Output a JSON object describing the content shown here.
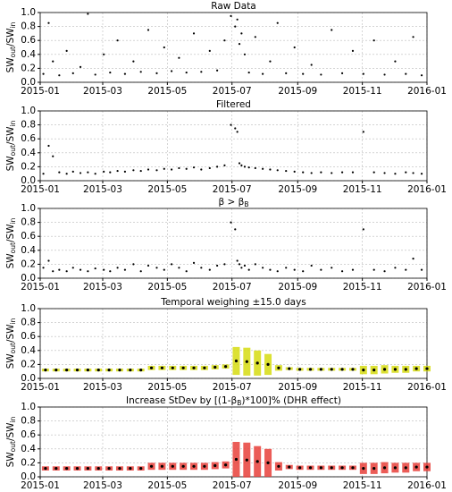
{
  "chart_data": [
    {
      "type": "scatter",
      "title": [
        "Raw Data"
      ],
      "y_label": [
        "SW",
        "out",
        "/SW",
        "in"
      ],
      "color": "#000000",
      "grid": true,
      "xlim": [
        0,
        365
      ],
      "ylim": [
        0,
        1
      ],
      "xticks": [
        {
          "value": 0,
          "label": "2015-01"
        },
        {
          "value": 59,
          "label": "2015-03"
        },
        {
          "value": 120,
          "label": "2015-05"
        },
        {
          "value": 181,
          "label": "2015-07"
        },
        {
          "value": 243,
          "label": "2015-09"
        },
        {
          "value": 304,
          "label": "2015-11"
        },
        {
          "value": 365,
          "label": "2016-01"
        }
      ],
      "yticks": [
        {
          "value": 0,
          "label": "0.0"
        },
        0.2,
        0.4,
        0.6,
        0.8,
        {
          "value": 1,
          "label": "1.0"
        }
      ],
      "x": [
        3,
        8,
        12,
        18,
        25,
        31,
        38,
        45,
        52,
        60,
        66,
        73,
        80,
        88,
        95,
        102,
        110,
        117,
        124,
        131,
        138,
        145,
        152,
        160,
        167,
        174,
        180,
        184,
        186,
        188,
        190,
        193,
        197,
        203,
        210,
        217,
        224,
        232,
        240,
        248,
        256,
        265,
        275,
        285,
        295,
        305,
        315,
        325,
        335,
        345,
        352,
        360
      ],
      "values": [
        0.12,
        0.85,
        0.3,
        0.1,
        0.45,
        0.13,
        0.22,
        0.98,
        0.11,
        0.4,
        0.14,
        0.6,
        0.12,
        0.3,
        0.15,
        0.75,
        0.13,
        0.5,
        0.16,
        0.35,
        0.14,
        0.7,
        0.15,
        0.45,
        0.17,
        0.6,
        0.95,
        0.8,
        0.9,
        0.55,
        0.7,
        0.4,
        0.14,
        0.65,
        0.12,
        0.3,
        0.85,
        0.13,
        0.5,
        0.12,
        0.25,
        0.11,
        0.75,
        0.13,
        0.45,
        0.12,
        0.6,
        0.11,
        0.3,
        0.12,
        0.65,
        0.1
      ]
    },
    {
      "type": "scatter",
      "title": [
        "Filtered"
      ],
      "y_label": [
        "SW",
        "out",
        "/SW",
        "in"
      ],
      "color": "#000000",
      "grid": true,
      "xlim": [
        0,
        365
      ],
      "ylim": [
        0,
        1
      ],
      "xticks": [
        {
          "value": 0,
          "label": "2015-01"
        },
        {
          "value": 59,
          "label": "2015-03"
        },
        {
          "value": 120,
          "label": "2015-05"
        },
        {
          "value": 181,
          "label": "2015-07"
        },
        {
          "value": 243,
          "label": "2015-09"
        },
        {
          "value": 304,
          "label": "2015-11"
        },
        {
          "value": 365,
          "label": "2016-01"
        }
      ],
      "yticks": [
        {
          "value": 0,
          "label": "0.0"
        },
        0.2,
        0.4,
        0.6,
        0.8,
        {
          "value": 1,
          "label": "1.0"
        }
      ],
      "x": [
        3,
        8,
        12,
        18,
        25,
        31,
        38,
        45,
        52,
        60,
        66,
        73,
        80,
        88,
        95,
        102,
        110,
        117,
        124,
        131,
        138,
        145,
        152,
        160,
        167,
        174,
        180,
        184,
        186,
        188,
        190,
        193,
        197,
        203,
        210,
        217,
        224,
        232,
        240,
        248,
        256,
        265,
        275,
        285,
        295,
        305,
        315,
        325,
        335,
        345,
        352,
        360
      ],
      "values": [
        0.1,
        0.5,
        0.35,
        0.12,
        0.1,
        0.13,
        0.11,
        0.12,
        0.1,
        0.13,
        0.12,
        0.14,
        0.13,
        0.15,
        0.14,
        0.16,
        0.15,
        0.17,
        0.16,
        0.18,
        0.17,
        0.19,
        0.16,
        0.18,
        0.2,
        0.22,
        0.8,
        0.75,
        0.7,
        0.25,
        0.22,
        0.2,
        0.19,
        0.18,
        0.17,
        0.16,
        0.15,
        0.14,
        0.13,
        0.12,
        0.11,
        0.12,
        0.11,
        0.12,
        0.12,
        0.7,
        0.12,
        0.11,
        0.1,
        0.12,
        0.11,
        0.1
      ]
    },
    {
      "type": "scatter",
      "title": [
        "β > β",
        "B"
      ],
      "y_label": [
        "SW",
        "out",
        "/SW",
        "in"
      ],
      "color": "#000000",
      "grid": true,
      "xlim": [
        0,
        365
      ],
      "ylim": [
        0,
        1
      ],
      "xticks": [
        {
          "value": 0,
          "label": "2015-01"
        },
        {
          "value": 59,
          "label": "2015-03"
        },
        {
          "value": 120,
          "label": "2015-05"
        },
        {
          "value": 181,
          "label": "2015-07"
        },
        {
          "value": 243,
          "label": "2015-09"
        },
        {
          "value": 304,
          "label": "2015-11"
        },
        {
          "value": 365,
          "label": "2016-01"
        }
      ],
      "yticks": [
        {
          "value": 0,
          "label": "0.0"
        },
        0.2,
        0.4,
        0.6,
        0.8,
        {
          "value": 1,
          "label": "1.0"
        }
      ],
      "x": [
        3,
        8,
        12,
        18,
        25,
        31,
        38,
        45,
        52,
        60,
        66,
        73,
        80,
        88,
        95,
        102,
        110,
        117,
        124,
        131,
        138,
        145,
        152,
        160,
        167,
        174,
        180,
        184,
        186,
        188,
        190,
        193,
        197,
        203,
        210,
        217,
        224,
        232,
        240,
        248,
        256,
        265,
        275,
        285,
        295,
        305,
        315,
        325,
        335,
        345,
        352,
        360
      ],
      "values": [
        0.15,
        0.25,
        0.1,
        0.12,
        0.1,
        0.15,
        0.12,
        0.1,
        0.14,
        0.12,
        0.1,
        0.15,
        0.12,
        0.2,
        0.1,
        0.18,
        0.15,
        0.12,
        0.2,
        0.15,
        0.1,
        0.22,
        0.15,
        0.12,
        0.18,
        0.2,
        0.8,
        0.7,
        0.25,
        0.2,
        0.15,
        0.18,
        0.12,
        0.2,
        0.15,
        0.12,
        0.1,
        0.15,
        0.12,
        0.1,
        0.18,
        0.12,
        0.15,
        0.1,
        0.12,
        0.7,
        0.12,
        0.1,
        0.15,
        0.12,
        0.28,
        0.12
      ]
    },
    {
      "type": "errorbar",
      "title": [
        "Temporal weighing  ±15.0 days"
      ],
      "y_label": [
        "SW",
        "out",
        "/SW",
        "in"
      ],
      "color": "#000000",
      "error_color": "#d6dc10",
      "grid": true,
      "xlim": [
        0,
        365
      ],
      "ylim": [
        0,
        1
      ],
      "xticks": [
        {
          "value": 0,
          "label": "2015-01"
        },
        {
          "value": 59,
          "label": "2015-03"
        },
        {
          "value": 120,
          "label": "2015-05"
        },
        {
          "value": 181,
          "label": "2015-07"
        },
        {
          "value": 243,
          "label": "2015-09"
        },
        {
          "value": 304,
          "label": "2015-11"
        },
        {
          "value": 365,
          "label": "2016-01"
        }
      ],
      "yticks": [
        {
          "value": 0,
          "label": "0.0"
        },
        0.2,
        0.4,
        0.6,
        0.8,
        {
          "value": 1,
          "label": "1.0"
        }
      ],
      "x": [
        5,
        15,
        25,
        35,
        45,
        55,
        65,
        75,
        85,
        95,
        105,
        115,
        125,
        135,
        145,
        155,
        165,
        175,
        185,
        195,
        205,
        215,
        225,
        235,
        245,
        255,
        265,
        275,
        285,
        295,
        305,
        315,
        325,
        335,
        345,
        355,
        365
      ],
      "values": [
        0.12,
        0.12,
        0.12,
        0.12,
        0.12,
        0.12,
        0.12,
        0.12,
        0.12,
        0.12,
        0.15,
        0.15,
        0.15,
        0.15,
        0.15,
        0.15,
        0.16,
        0.17,
        0.25,
        0.24,
        0.22,
        0.2,
        0.15,
        0.14,
        0.13,
        0.13,
        0.13,
        0.13,
        0.13,
        0.13,
        0.12,
        0.12,
        0.13,
        0.13,
        0.13,
        0.14,
        0.14
      ],
      "errors": [
        0.02,
        0.02,
        0.02,
        0.02,
        0.02,
        0.02,
        0.02,
        0.02,
        0.02,
        0.02,
        0.03,
        0.03,
        0.03,
        0.03,
        0.03,
        0.03,
        0.03,
        0.03,
        0.2,
        0.2,
        0.18,
        0.15,
        0.04,
        0.02,
        0.02,
        0.02,
        0.02,
        0.02,
        0.02,
        0.02,
        0.06,
        0.06,
        0.06,
        0.05,
        0.05,
        0.04,
        0.04
      ]
    },
    {
      "type": "errorbar",
      "title": [
        "Increase StDev by [(1-β",
        "B",
        ")*100]% (DHR effect)"
      ],
      "y_label": [
        "SW",
        "out",
        "/SW",
        "in"
      ],
      "color": "#000000",
      "error_color": "#e8403a",
      "grid": true,
      "xlim": [
        0,
        365
      ],
      "ylim": [
        0,
        1
      ],
      "xticks": [
        {
          "value": 0,
          "label": "2015-01"
        },
        {
          "value": 59,
          "label": "2015-03"
        },
        {
          "value": 120,
          "label": "2015-05"
        },
        {
          "value": 181,
          "label": "2015-07"
        },
        {
          "value": 243,
          "label": "2015-09"
        },
        {
          "value": 304,
          "label": "2015-11"
        },
        {
          "value": 365,
          "label": "2016-01"
        }
      ],
      "yticks": [
        {
          "value": 0,
          "label": "0.0"
        },
        0.2,
        0.4,
        0.6,
        0.8,
        {
          "value": 1,
          "label": "1.0"
        }
      ],
      "x": [
        5,
        15,
        25,
        35,
        45,
        55,
        65,
        75,
        85,
        95,
        105,
        115,
        125,
        135,
        145,
        155,
        165,
        175,
        185,
        195,
        205,
        215,
        225,
        235,
        245,
        255,
        265,
        275,
        285,
        295,
        305,
        315,
        325,
        335,
        345,
        355,
        365
      ],
      "values": [
        0.12,
        0.12,
        0.12,
        0.12,
        0.12,
        0.12,
        0.12,
        0.12,
        0.12,
        0.12,
        0.15,
        0.15,
        0.15,
        0.15,
        0.15,
        0.15,
        0.16,
        0.17,
        0.25,
        0.24,
        0.22,
        0.2,
        0.15,
        0.14,
        0.13,
        0.13,
        0.13,
        0.13,
        0.13,
        0.13,
        0.12,
        0.12,
        0.13,
        0.13,
        0.13,
        0.14,
        0.14
      ],
      "errors": [
        0.03,
        0.03,
        0.03,
        0.03,
        0.03,
        0.03,
        0.03,
        0.03,
        0.03,
        0.03,
        0.05,
        0.05,
        0.05,
        0.05,
        0.05,
        0.05,
        0.05,
        0.05,
        0.25,
        0.25,
        0.22,
        0.2,
        0.06,
        0.03,
        0.03,
        0.03,
        0.03,
        0.03,
        0.03,
        0.03,
        0.08,
        0.08,
        0.08,
        0.07,
        0.07,
        0.06,
        0.06
      ]
    }
  ]
}
